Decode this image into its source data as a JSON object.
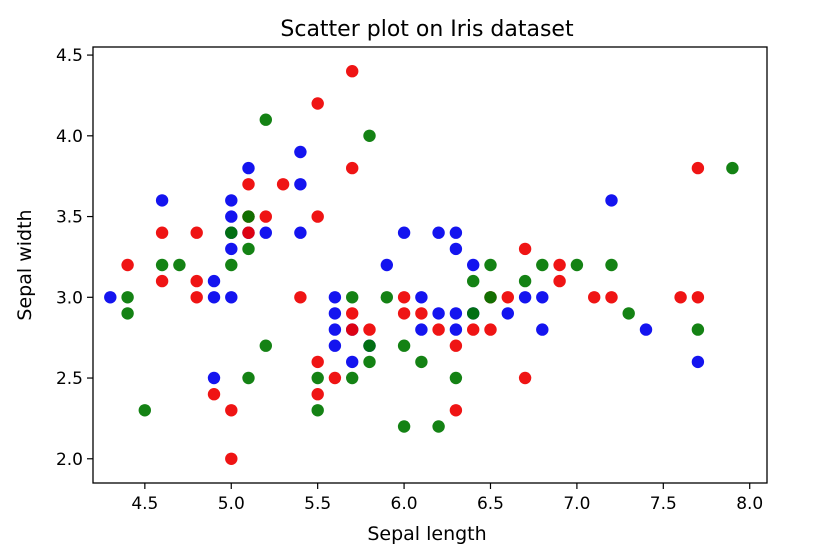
{
  "chart_data": {
    "type": "scatter",
    "title": "Scatter plot on Iris dataset",
    "xlabel": "Sepal length",
    "ylabel": "Sepal width",
    "xlim": [
      4.2,
      8.1
    ],
    "ylim": [
      1.85,
      4.55
    ],
    "xticks": [
      4.5,
      5.0,
      5.5,
      6.0,
      6.5,
      7.0,
      7.5,
      8.0
    ],
    "xtick_labels": [
      "4.5",
      "5.0",
      "5.5",
      "6.0",
      "6.5",
      "7.0",
      "7.5",
      "8.0"
    ],
    "yticks": [
      2.0,
      2.5,
      3.0,
      3.5,
      4.0,
      4.5
    ],
    "ytick_labels": [
      "2.0",
      "2.5",
      "3.0",
      "3.5",
      "4.0",
      "4.5"
    ],
    "grid": false,
    "series": [
      {
        "color": "#0000ee",
        "points": [
          [
            4.3,
            3.0
          ],
          [
            4.6,
            3.6
          ],
          [
            4.9,
            3.1
          ],
          [
            4.9,
            3.0
          ],
          [
            4.9,
            2.5
          ],
          [
            5.0,
            3.6
          ],
          [
            5.0,
            3.5
          ],
          [
            5.0,
            3.4
          ],
          [
            5.0,
            3.3
          ],
          [
            5.0,
            3.0
          ],
          [
            5.1,
            3.8
          ],
          [
            5.1,
            3.4
          ],
          [
            5.2,
            3.4
          ],
          [
            5.4,
            3.9
          ],
          [
            5.4,
            3.7
          ],
          [
            5.4,
            3.4
          ],
          [
            5.6,
            3.0
          ],
          [
            5.6,
            2.9
          ],
          [
            5.6,
            2.8
          ],
          [
            5.6,
            2.7
          ],
          [
            5.7,
            2.8
          ],
          [
            5.7,
            2.6
          ],
          [
            5.8,
            2.7
          ],
          [
            5.9,
            3.2
          ],
          [
            6.0,
            3.4
          ],
          [
            6.1,
            3.0
          ],
          [
            6.1,
            2.8
          ],
          [
            6.2,
            3.4
          ],
          [
            6.2,
            2.9
          ],
          [
            6.3,
            3.4
          ],
          [
            6.3,
            3.3
          ],
          [
            6.3,
            2.9
          ],
          [
            6.3,
            2.8
          ],
          [
            6.4,
            3.2
          ],
          [
            6.4,
            2.9
          ],
          [
            6.6,
            2.9
          ],
          [
            6.7,
            3.0
          ],
          [
            6.8,
            3.0
          ],
          [
            6.8,
            2.8
          ],
          [
            7.2,
            3.6
          ],
          [
            7.4,
            2.8
          ],
          [
            7.7,
            2.6
          ]
        ]
      },
      {
        "color": "#ee0000",
        "points": [
          [
            4.4,
            3.2
          ],
          [
            4.6,
            3.4
          ],
          [
            4.6,
            3.1
          ],
          [
            4.8,
            3.4
          ],
          [
            4.8,
            3.1
          ],
          [
            4.8,
            3.0
          ],
          [
            4.9,
            2.4
          ],
          [
            5.0,
            2.3
          ],
          [
            5.0,
            2.0
          ],
          [
            5.1,
            3.7
          ],
          [
            5.1,
            3.5
          ],
          [
            5.1,
            3.4
          ],
          [
            5.2,
            3.5
          ],
          [
            5.3,
            3.7
          ],
          [
            5.4,
            3.0
          ],
          [
            5.5,
            4.2
          ],
          [
            5.5,
            3.5
          ],
          [
            5.5,
            2.6
          ],
          [
            5.5,
            2.4
          ],
          [
            5.6,
            2.5
          ],
          [
            5.7,
            4.4
          ],
          [
            5.7,
            3.8
          ],
          [
            5.7,
            2.9
          ],
          [
            5.7,
            2.8
          ],
          [
            5.8,
            2.8
          ],
          [
            6.0,
            3.0
          ],
          [
            6.0,
            2.9
          ],
          [
            6.1,
            2.9
          ],
          [
            6.2,
            2.8
          ],
          [
            6.3,
            2.7
          ],
          [
            6.3,
            2.3
          ],
          [
            6.4,
            2.8
          ],
          [
            6.5,
            3.0
          ],
          [
            6.5,
            2.8
          ],
          [
            6.6,
            3.0
          ],
          [
            6.7,
            3.3
          ],
          [
            6.7,
            2.5
          ],
          [
            6.9,
            3.2
          ],
          [
            6.9,
            3.1
          ],
          [
            7.1,
            3.0
          ],
          [
            7.2,
            3.0
          ],
          [
            7.6,
            3.0
          ],
          [
            7.7,
            3.8
          ],
          [
            7.7,
            3.0
          ]
        ]
      },
      {
        "color": "#007700",
        "points": [
          [
            4.4,
            3.0
          ],
          [
            4.4,
            2.9
          ],
          [
            4.5,
            2.3
          ],
          [
            4.6,
            3.2
          ],
          [
            4.7,
            3.2
          ],
          [
            5.0,
            3.4
          ],
          [
            5.0,
            3.2
          ],
          [
            5.1,
            3.5
          ],
          [
            5.1,
            3.3
          ],
          [
            5.1,
            2.5
          ],
          [
            5.2,
            4.1
          ],
          [
            5.2,
            2.7
          ],
          [
            5.5,
            2.5
          ],
          [
            5.5,
            2.3
          ],
          [
            5.7,
            3.0
          ],
          [
            5.7,
            2.5
          ],
          [
            5.8,
            4.0
          ],
          [
            5.8,
            2.7
          ],
          [
            5.8,
            2.6
          ],
          [
            5.9,
            3.0
          ],
          [
            6.0,
            2.7
          ],
          [
            6.0,
            2.2
          ],
          [
            6.1,
            2.6
          ],
          [
            6.2,
            2.2
          ],
          [
            6.3,
            2.5
          ],
          [
            6.4,
            3.1
          ],
          [
            6.4,
            2.9
          ],
          [
            6.5,
            3.2
          ],
          [
            6.5,
            3.0
          ],
          [
            6.7,
            3.1
          ],
          [
            6.8,
            3.2
          ],
          [
            7.0,
            3.2
          ],
          [
            7.2,
            3.2
          ],
          [
            7.3,
            2.9
          ],
          [
            7.7,
            2.8
          ],
          [
            7.9,
            3.8
          ]
        ]
      }
    ]
  }
}
